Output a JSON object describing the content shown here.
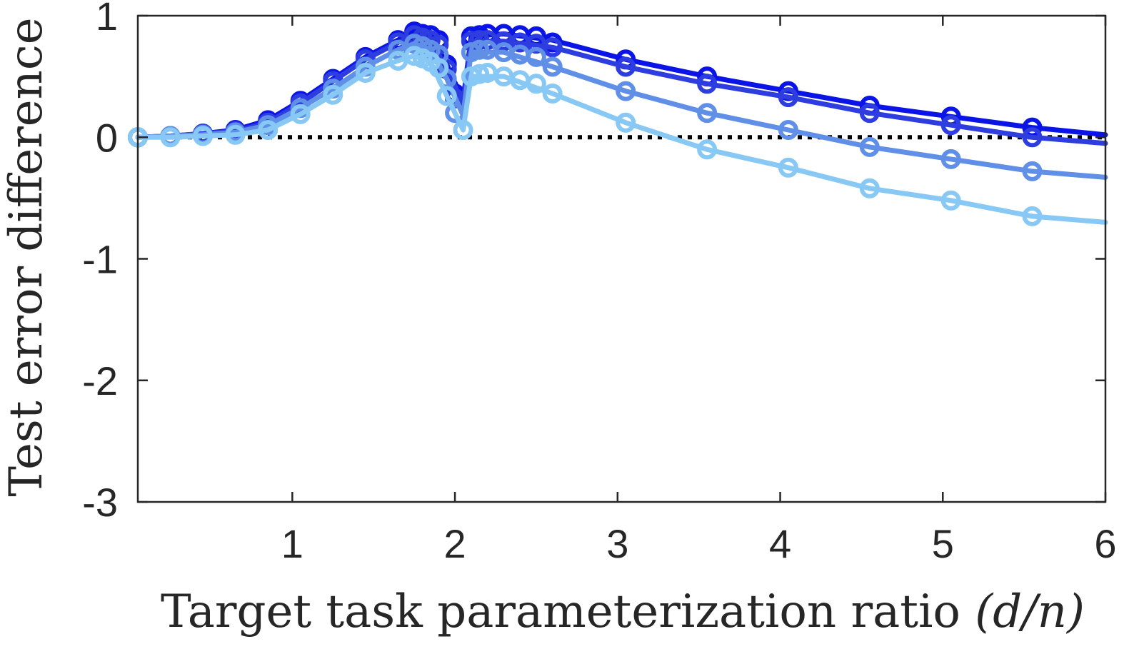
{
  "chart_data": {
    "type": "line",
    "xlabel": "Target task parameterization ratio",
    "xlabel_math": "(d/n)",
    "ylabel": "Test error difference",
    "xlim": [
      0.05,
      6
    ],
    "ylim": [
      -3,
      1
    ],
    "xticks": [
      1,
      2,
      3,
      4,
      5,
      6
    ],
    "yticks": [
      1,
      0,
      -1,
      -2,
      -3
    ],
    "xtick_labels": [
      "1",
      "2",
      "3",
      "4",
      "5",
      "6"
    ],
    "ytick_labels": [
      "1",
      "0",
      "-1",
      "-2",
      "-3"
    ],
    "grid": false,
    "reference_line": {
      "y": 0,
      "style": "dotted",
      "color": "#000000"
    },
    "series": [
      {
        "color": "#0a14e6",
        "markers": {
          "x": [
            0.05,
            0.25,
            0.45,
            0.65,
            0.85,
            1.05,
            1.25,
            1.45,
            1.65,
            1.75,
            1.8,
            1.85,
            1.9,
            1.95,
            2.0,
            2.1,
            2.15,
            2.2,
            2.3,
            2.4,
            2.5,
            2.6,
            3.05,
            3.55,
            4.05,
            4.55,
            5.05,
            5.55
          ],
          "y": [
            0.0,
            0.01,
            0.03,
            0.06,
            0.14,
            0.3,
            0.48,
            0.66,
            0.8,
            0.87,
            0.85,
            0.84,
            0.8,
            0.6,
            0.36,
            0.83,
            0.84,
            0.85,
            0.85,
            0.84,
            0.83,
            0.78,
            0.64,
            0.5,
            0.38,
            0.26,
            0.17,
            0.08
          ]
        },
        "curve": {
          "x": [
            0.05,
            0.25,
            0.45,
            0.65,
            0.85,
            1.05,
            1.25,
            1.45,
            1.65,
            1.75,
            1.85,
            1.95,
            2.05,
            2.1,
            2.3,
            2.6,
            3.05,
            3.55,
            4.05,
            4.55,
            5.05,
            5.55,
            6.0
          ],
          "y": [
            0.0,
            0.01,
            0.03,
            0.06,
            0.14,
            0.3,
            0.48,
            0.66,
            0.8,
            0.87,
            0.84,
            0.6,
            0.3,
            0.83,
            0.85,
            0.8,
            0.64,
            0.5,
            0.38,
            0.26,
            0.17,
            0.08,
            0.02
          ]
        }
      },
      {
        "color": "#2d3de0",
        "markers": {
          "x": [
            0.05,
            0.25,
            0.45,
            0.65,
            0.85,
            1.05,
            1.25,
            1.45,
            1.65,
            1.75,
            1.8,
            1.85,
            1.9,
            1.95,
            2.0,
            2.1,
            2.15,
            2.2,
            2.3,
            2.4,
            2.5,
            2.6,
            3.05,
            3.55,
            4.05,
            4.55,
            5.05,
            5.55
          ],
          "y": [
            0.0,
            0.01,
            0.03,
            0.05,
            0.12,
            0.28,
            0.46,
            0.64,
            0.78,
            0.84,
            0.82,
            0.8,
            0.76,
            0.56,
            0.32,
            0.79,
            0.8,
            0.8,
            0.79,
            0.78,
            0.77,
            0.74,
            0.58,
            0.44,
            0.33,
            0.2,
            0.1,
            0.0
          ]
        },
        "curve": {
          "x": [
            0.05,
            0.25,
            0.45,
            0.65,
            0.85,
            1.05,
            1.25,
            1.45,
            1.65,
            1.75,
            1.85,
            1.95,
            2.05,
            2.1,
            2.3,
            2.6,
            3.05,
            3.55,
            4.05,
            4.55,
            5.05,
            5.55,
            6.0
          ],
          "y": [
            0.0,
            0.01,
            0.03,
            0.05,
            0.12,
            0.28,
            0.46,
            0.64,
            0.78,
            0.84,
            0.8,
            0.56,
            0.28,
            0.79,
            0.79,
            0.74,
            0.58,
            0.44,
            0.33,
            0.2,
            0.1,
            0.0,
            -0.05
          ]
        }
      },
      {
        "color": "#5f8fe6",
        "markers": {
          "x": [
            0.05,
            0.25,
            0.45,
            0.65,
            0.85,
            1.05,
            1.25,
            1.45,
            1.65,
            1.75,
            1.8,
            1.85,
            1.9,
            1.95,
            2.0,
            2.1,
            2.15,
            2.2,
            2.3,
            2.4,
            2.5,
            2.6,
            3.05,
            3.55,
            4.05,
            4.55,
            5.05,
            5.55
          ],
          "y": [
            0.0,
            0.01,
            0.02,
            0.04,
            0.1,
            0.24,
            0.4,
            0.58,
            0.72,
            0.77,
            0.75,
            0.72,
            0.68,
            0.48,
            0.2,
            0.7,
            0.72,
            0.72,
            0.7,
            0.68,
            0.66,
            0.58,
            0.38,
            0.2,
            0.06,
            -0.08,
            -0.18,
            -0.28
          ]
        },
        "curve": {
          "x": [
            0.05,
            0.25,
            0.45,
            0.65,
            0.85,
            1.05,
            1.25,
            1.45,
            1.65,
            1.75,
            1.85,
            1.95,
            2.05,
            2.1,
            2.3,
            2.6,
            3.05,
            3.55,
            4.05,
            4.55,
            5.05,
            5.55,
            6.0
          ],
          "y": [
            0.0,
            0.01,
            0.02,
            0.04,
            0.1,
            0.24,
            0.4,
            0.58,
            0.72,
            0.77,
            0.72,
            0.48,
            0.18,
            0.7,
            0.7,
            0.58,
            0.38,
            0.2,
            0.06,
            -0.08,
            -0.18,
            -0.28,
            -0.33
          ]
        }
      },
      {
        "color": "#88c8f5",
        "markers": {
          "x": [
            0.05,
            0.25,
            0.45,
            0.65,
            0.85,
            1.05,
            1.25,
            1.45,
            1.65,
            1.75,
            1.8,
            1.85,
            1.9,
            1.95,
            2.05,
            2.1,
            2.15,
            2.2,
            2.3,
            2.4,
            2.5,
            2.6,
            3.05,
            3.55,
            4.05,
            4.55,
            5.05,
            5.55
          ],
          "y": [
            0.0,
            0.0,
            0.01,
            0.02,
            0.06,
            0.19,
            0.35,
            0.53,
            0.63,
            0.67,
            0.65,
            0.62,
            0.57,
            0.34,
            0.06,
            0.5,
            0.52,
            0.53,
            0.5,
            0.47,
            0.44,
            0.36,
            0.12,
            -0.1,
            -0.25,
            -0.42,
            -0.52,
            -0.65
          ]
        },
        "curve": {
          "x": [
            0.05,
            0.25,
            0.45,
            0.65,
            0.85,
            1.05,
            1.25,
            1.45,
            1.65,
            1.75,
            1.85,
            1.95,
            2.05,
            2.1,
            2.3,
            2.6,
            3.05,
            3.55,
            4.05,
            4.55,
            5.05,
            5.55,
            6.0
          ],
          "y": [
            0.0,
            0.0,
            0.01,
            0.02,
            0.06,
            0.19,
            0.35,
            0.53,
            0.63,
            0.67,
            0.62,
            0.34,
            0.06,
            0.5,
            0.5,
            0.36,
            0.12,
            -0.1,
            -0.25,
            -0.42,
            -0.52,
            -0.65,
            -0.7
          ]
        }
      }
    ]
  }
}
